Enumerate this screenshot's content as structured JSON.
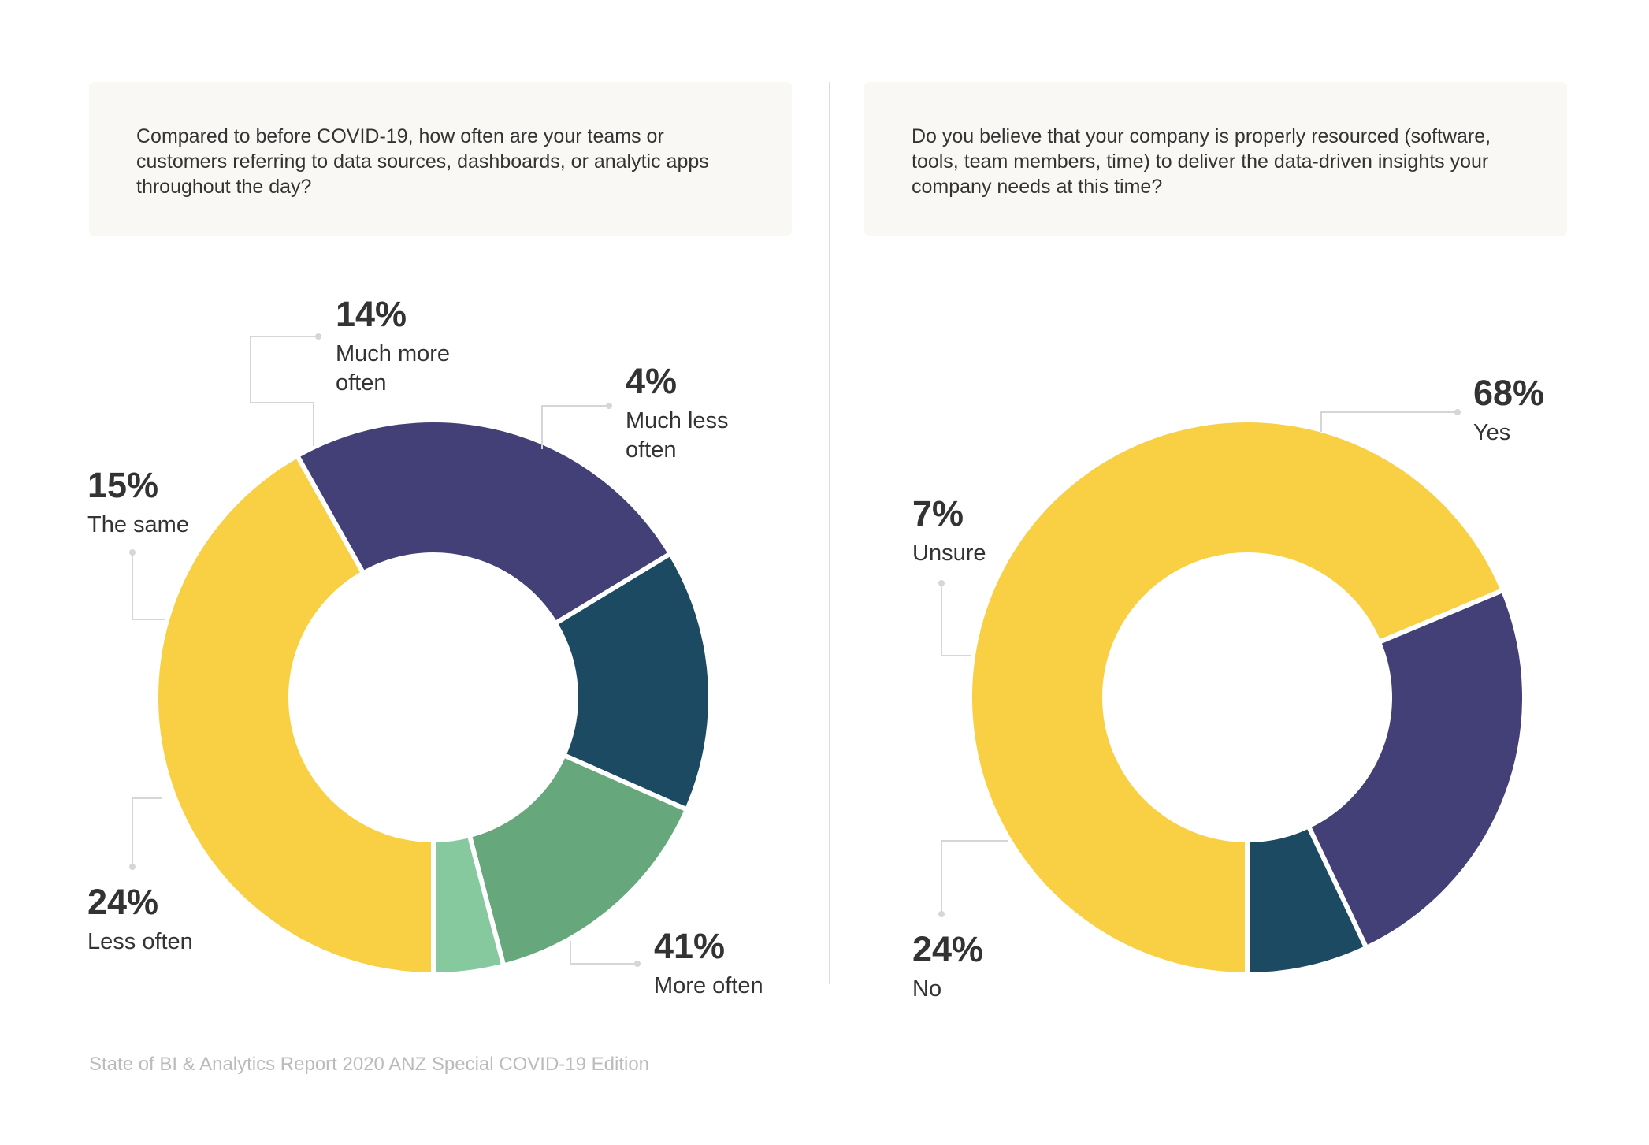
{
  "footer": "State of BI & Analytics Report 2020 ANZ Special COVID-19 Edition",
  "chart_data": [
    {
      "type": "pie",
      "donut": true,
      "title": "Compared to before COVID-19, how often are your teams or customers referring to data sources, dashboards, or analytic apps throughout the day?",
      "slices": [
        {
          "label": "More often",
          "value": 41,
          "display": "41%",
          "color": "#f9cf44",
          "label_lines": [
            "More often"
          ]
        },
        {
          "label": "Less often",
          "value": 24,
          "display": "24%",
          "color": "#434078",
          "label_lines": [
            "Less often"
          ]
        },
        {
          "label": "The same",
          "value": 15,
          "display": "15%",
          "color": "#1d4a63",
          "label_lines": [
            "The same"
          ]
        },
        {
          "label": "Much more often",
          "value": 14,
          "display": "14%",
          "color": "#66a87b",
          "label_lines": [
            "Much more",
            "often"
          ]
        },
        {
          "label": "Much less often",
          "value": 4,
          "display": "4%",
          "color": "#86c99e",
          "label_lines": [
            "Much less",
            "often"
          ]
        }
      ]
    },
    {
      "type": "pie",
      "donut": true,
      "title": "Do you believe that your company is properly resourced (software, tools, team members, time) to deliver the data-driven insights your company needs at this time?",
      "slices": [
        {
          "label": "Yes",
          "value": 68,
          "display": "68%",
          "color": "#f9cf44",
          "label_lines": [
            "Yes"
          ]
        },
        {
          "label": "No",
          "value": 24,
          "display": "24%",
          "color": "#434078",
          "label_lines": [
            "No"
          ]
        },
        {
          "label": "Unsure",
          "value": 7,
          "display": "7%",
          "color": "#1d4a63",
          "label_lines": [
            "Unsure"
          ]
        }
      ]
    }
  ]
}
